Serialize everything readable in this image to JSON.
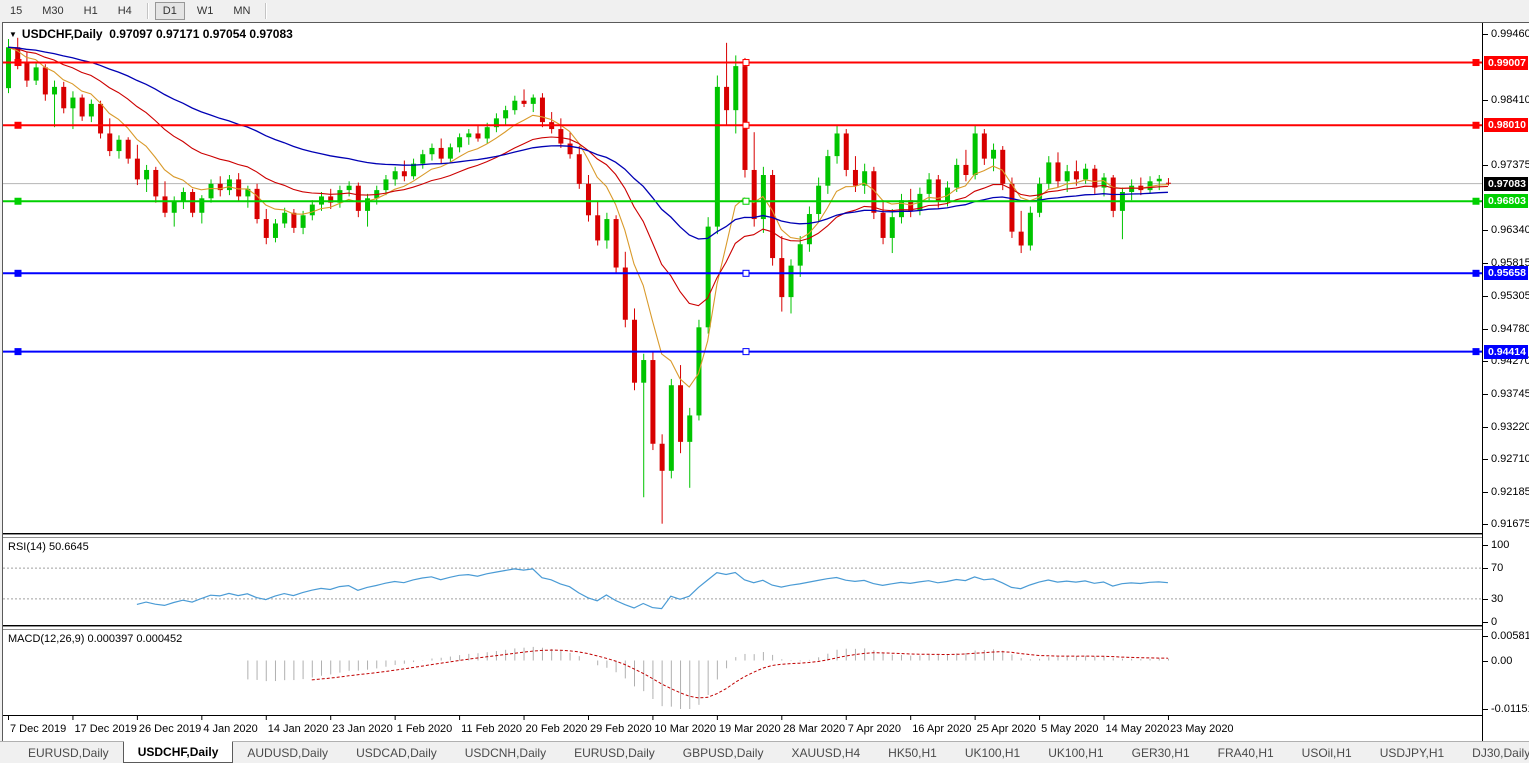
{
  "toolbar": {
    "timeframes": [
      "15",
      "M30",
      "H1",
      "H4",
      "D1",
      "W1",
      "MN"
    ],
    "active": "D1"
  },
  "chart": {
    "title_symbol": "USDCHF,Daily",
    "ohlc_display": "0.97097 0.97171 0.97054 0.97083"
  },
  "chart_data": {
    "type": "candlestick",
    "symbol": "USDCHF",
    "timeframe": "Daily",
    "last_bar": {
      "open": "0.97097",
      "high": "0.97171",
      "low": "0.97054",
      "close": "0.97083"
    },
    "colors": {
      "bull": "#00c400",
      "bear": "#d80000",
      "ma_fast": "#d99a2b",
      "ma_mid": "#cc0000",
      "ma_slow": "#0000b4",
      "rsi_line": "#4a9bd5",
      "macd_hist": "#b0b0b0",
      "macd_signal": "#c00000",
      "bid_line": "#b4b4b4"
    },
    "x_labels": [
      "7 Dec 2019",
      "17 Dec 2019",
      "26 Dec 2019",
      "4 Jan 2020",
      "14 Jan 2020",
      "23 Jan 2020",
      "1 Feb 2020",
      "11 Feb 2020",
      "20 Feb 2020",
      "29 Feb 2020",
      "10 Mar 2020",
      "19 Mar 2020",
      "28 Mar 2020",
      "7 Apr 2020",
      "16 Apr 2020",
      "25 Apr 2020",
      "5 May 2020",
      "14 May 2020",
      "23 May 2020"
    ],
    "bars_per_label": 7,
    "price_ticks": [
      "0.99460",
      "0.98410",
      "0.97375",
      "0.96340",
      "0.95815",
      "0.95305",
      "0.94780",
      "0.94270",
      "0.93745",
      "0.93220",
      "0.92710",
      "0.92185",
      "0.91675"
    ],
    "hlines": [
      {
        "price": 0.99007,
        "label": "0.99007",
        "color": "#ff0000",
        "width": 2
      },
      {
        "price": 0.9801,
        "label": "0.98010",
        "color": "#ff0000",
        "width": 2
      },
      {
        "price": 0.96803,
        "label": "0.96803",
        "color": "#00d000",
        "width": 2
      },
      {
        "price": 0.95658,
        "label": "0.95658",
        "color": "#0000ff",
        "width": 2
      },
      {
        "price": 0.94414,
        "label": "0.94414",
        "color": "#0000ff",
        "width": 2
      }
    ],
    "bid": {
      "price": 0.97083,
      "label": "0.97083",
      "badge_color": "#000000"
    },
    "moving_averages": [
      {
        "name": "fast",
        "period": 8
      },
      {
        "name": "mid",
        "period": 20
      },
      {
        "name": "slow",
        "period": 45
      }
    ],
    "ohlc": [
      [
        0.986,
        0.9938,
        0.9852,
        0.9925
      ],
      [
        0.9925,
        0.994,
        0.989,
        0.99
      ],
      [
        0.99,
        0.9918,
        0.9862,
        0.9872
      ],
      [
        0.9872,
        0.99,
        0.9865,
        0.9893
      ],
      [
        0.9893,
        0.9898,
        0.984,
        0.985
      ],
      [
        0.985,
        0.9872,
        0.9798,
        0.9862
      ],
      [
        0.9862,
        0.987,
        0.982,
        0.9828
      ],
      [
        0.9828,
        0.9855,
        0.9795,
        0.9845
      ],
      [
        0.9845,
        0.985,
        0.9808,
        0.9815
      ],
      [
        0.9815,
        0.9842,
        0.9806,
        0.9835
      ],
      [
        0.9835,
        0.984,
        0.978,
        0.9788
      ],
      [
        0.9788,
        0.9812,
        0.9752,
        0.976
      ],
      [
        0.976,
        0.9785,
        0.9748,
        0.9778
      ],
      [
        0.9778,
        0.9782,
        0.974,
        0.9748
      ],
      [
        0.9748,
        0.977,
        0.9706,
        0.9715
      ],
      [
        0.9715,
        0.9738,
        0.9695,
        0.973
      ],
      [
        0.973,
        0.9735,
        0.9678,
        0.9688
      ],
      [
        0.9688,
        0.9712,
        0.9655,
        0.9662
      ],
      [
        0.9662,
        0.9688,
        0.964,
        0.968
      ],
      [
        0.968,
        0.9702,
        0.9668,
        0.9695
      ],
      [
        0.9695,
        0.97,
        0.9655,
        0.9662
      ],
      [
        0.9662,
        0.969,
        0.9645,
        0.9685
      ],
      [
        0.9685,
        0.9715,
        0.9678,
        0.9708
      ],
      [
        0.9708,
        0.972,
        0.9688,
        0.9698
      ],
      [
        0.9698,
        0.9722,
        0.969,
        0.9715
      ],
      [
        0.9715,
        0.9725,
        0.968,
        0.9688
      ],
      [
        0.9688,
        0.9705,
        0.967,
        0.97
      ],
      [
        0.97,
        0.9708,
        0.9645,
        0.9652
      ],
      [
        0.9652,
        0.9668,
        0.9612,
        0.9622
      ],
      [
        0.9622,
        0.9652,
        0.9615,
        0.9645
      ],
      [
        0.9645,
        0.967,
        0.9638,
        0.9662
      ],
      [
        0.9662,
        0.9668,
        0.963,
        0.9638
      ],
      [
        0.9638,
        0.9665,
        0.9628,
        0.9658
      ],
      [
        0.9658,
        0.9682,
        0.965,
        0.9675
      ],
      [
        0.9675,
        0.9695,
        0.9665,
        0.9688
      ],
      [
        0.9688,
        0.97,
        0.9668,
        0.9678
      ],
      [
        0.9678,
        0.9705,
        0.967,
        0.9698
      ],
      [
        0.9698,
        0.9712,
        0.9688,
        0.9705
      ],
      [
        0.9705,
        0.971,
        0.9655,
        0.9665
      ],
      [
        0.9665,
        0.9692,
        0.964,
        0.9685
      ],
      [
        0.9685,
        0.9705,
        0.9675,
        0.9698
      ],
      [
        0.9698,
        0.9722,
        0.969,
        0.9715
      ],
      [
        0.9715,
        0.9735,
        0.9705,
        0.9728
      ],
      [
        0.9728,
        0.9745,
        0.9712,
        0.972
      ],
      [
        0.972,
        0.9748,
        0.9715,
        0.974
      ],
      [
        0.974,
        0.9762,
        0.9732,
        0.9755
      ],
      [
        0.9755,
        0.9772,
        0.9745,
        0.9765
      ],
      [
        0.9765,
        0.978,
        0.974,
        0.9748
      ],
      [
        0.9748,
        0.9772,
        0.9742,
        0.9766
      ],
      [
        0.9766,
        0.9788,
        0.9758,
        0.9782
      ],
      [
        0.9782,
        0.9795,
        0.977,
        0.9788
      ],
      [
        0.9788,
        0.98,
        0.9775,
        0.978
      ],
      [
        0.978,
        0.9805,
        0.9772,
        0.9798
      ],
      [
        0.9798,
        0.982,
        0.979,
        0.9812
      ],
      [
        0.9812,
        0.9832,
        0.98,
        0.9825
      ],
      [
        0.9825,
        0.9848,
        0.9818,
        0.984
      ],
      [
        0.984,
        0.9858,
        0.983,
        0.9835
      ],
      [
        0.9835,
        0.985,
        0.9822,
        0.9845
      ],
      [
        0.9845,
        0.9852,
        0.9798,
        0.9806
      ],
      [
        0.9806,
        0.9822,
        0.9788,
        0.9795
      ],
      [
        0.9795,
        0.9812,
        0.9765,
        0.9772
      ],
      [
        0.9772,
        0.979,
        0.9748,
        0.9755
      ],
      [
        0.9755,
        0.9768,
        0.97,
        0.9708
      ],
      [
        0.9708,
        0.9722,
        0.9648,
        0.9658
      ],
      [
        0.9658,
        0.968,
        0.961,
        0.9618
      ],
      [
        0.9618,
        0.9662,
        0.9605,
        0.9652
      ],
      [
        0.9652,
        0.9658,
        0.9565,
        0.9575
      ],
      [
        0.9575,
        0.96,
        0.948,
        0.9492
      ],
      [
        0.9492,
        0.951,
        0.938,
        0.9392
      ],
      [
        0.9392,
        0.9438,
        0.921,
        0.9428
      ],
      [
        0.9428,
        0.944,
        0.9285,
        0.9295
      ],
      [
        0.9295,
        0.931,
        0.9168,
        0.9252
      ],
      [
        0.9252,
        0.9398,
        0.924,
        0.9388
      ],
      [
        0.9388,
        0.942,
        0.928,
        0.9298
      ],
      [
        0.9298,
        0.9352,
        0.9225,
        0.934
      ],
      [
        0.934,
        0.9492,
        0.9332,
        0.948
      ],
      [
        0.948,
        0.9655,
        0.947,
        0.964
      ],
      [
        0.964,
        0.988,
        0.9628,
        0.9862
      ],
      [
        0.9862,
        0.9932,
        0.98,
        0.9825
      ],
      [
        0.9825,
        0.9912,
        0.9788,
        0.9895
      ],
      [
        0.9895,
        0.9908,
        0.9718,
        0.973
      ],
      [
        0.973,
        0.979,
        0.964,
        0.9652
      ],
      [
        0.9652,
        0.9735,
        0.963,
        0.9722
      ],
      [
        0.9722,
        0.973,
        0.9578,
        0.959
      ],
      [
        0.959,
        0.9625,
        0.9505,
        0.9528
      ],
      [
        0.9528,
        0.9588,
        0.9502,
        0.9578
      ],
      [
        0.9578,
        0.9625,
        0.956,
        0.9612
      ],
      [
        0.9612,
        0.9672,
        0.96,
        0.966
      ],
      [
        0.966,
        0.9718,
        0.9648,
        0.9705
      ],
      [
        0.9705,
        0.9762,
        0.9692,
        0.9752
      ],
      [
        0.9752,
        0.98,
        0.974,
        0.9788
      ],
      [
        0.9788,
        0.9795,
        0.972,
        0.973
      ],
      [
        0.973,
        0.9752,
        0.9695,
        0.9705
      ],
      [
        0.9705,
        0.974,
        0.9692,
        0.9728
      ],
      [
        0.9728,
        0.9735,
        0.9652,
        0.9662
      ],
      [
        0.9662,
        0.968,
        0.9612,
        0.9622
      ],
      [
        0.9622,
        0.9668,
        0.9598,
        0.9655
      ],
      [
        0.9655,
        0.9692,
        0.9645,
        0.9682
      ],
      [
        0.9682,
        0.97,
        0.9655,
        0.9665
      ],
      [
        0.9665,
        0.9702,
        0.9658,
        0.9692
      ],
      [
        0.9692,
        0.9725,
        0.9682,
        0.9715
      ],
      [
        0.9715,
        0.9722,
        0.967,
        0.968
      ],
      [
        0.968,
        0.9712,
        0.9672,
        0.9702
      ],
      [
        0.9702,
        0.9748,
        0.9695,
        0.9738
      ],
      [
        0.9738,
        0.9762,
        0.9712,
        0.9722
      ],
      [
        0.9722,
        0.98,
        0.9715,
        0.9788
      ],
      [
        0.9788,
        0.9795,
        0.9738,
        0.9748
      ],
      [
        0.9748,
        0.9772,
        0.9728,
        0.9762
      ],
      [
        0.9762,
        0.9768,
        0.9698,
        0.9708
      ],
      [
        0.9708,
        0.9718,
        0.9622,
        0.9632
      ],
      [
        0.9632,
        0.9665,
        0.9598,
        0.961
      ],
      [
        0.961,
        0.9672,
        0.9602,
        0.9662
      ],
      [
        0.9662,
        0.9718,
        0.9655,
        0.9708
      ],
      [
        0.9708,
        0.9752,
        0.97,
        0.9742
      ],
      [
        0.9742,
        0.9758,
        0.9702,
        0.9712
      ],
      [
        0.9712,
        0.9738,
        0.9695,
        0.9728
      ],
      [
        0.9728,
        0.9745,
        0.9705,
        0.9715
      ],
      [
        0.9715,
        0.974,
        0.9708,
        0.9732
      ],
      [
        0.9732,
        0.9738,
        0.9692,
        0.9702
      ],
      [
        0.9702,
        0.9725,
        0.9688,
        0.9718
      ],
      [
        0.9718,
        0.9722,
        0.9655,
        0.9665
      ],
      [
        0.9665,
        0.9702,
        0.962,
        0.9695
      ],
      [
        0.9695,
        0.9715,
        0.9682,
        0.9705
      ],
      [
        0.9705,
        0.9718,
        0.969,
        0.9698
      ],
      [
        0.9698,
        0.972,
        0.9692,
        0.9712
      ],
      [
        0.9712,
        0.9722,
        0.9698,
        0.9716
      ],
      [
        0.97097,
        0.97171,
        0.97054,
        0.97083
      ]
    ],
    "rsi": {
      "period": 14,
      "last": "50.6645",
      "levels": [
        70,
        30
      ],
      "scale": [
        100,
        0
      ]
    },
    "macd": {
      "fast": 12,
      "slow": 26,
      "signal_period": 9,
      "last_main": "0.000397",
      "last_signal": "0.000452",
      "axis_max": 0.005818,
      "axis_min": -0.011514
    }
  },
  "rsi_panel": {
    "label": "RSI(14) 50.6645",
    "ticks": [
      {
        "v": 100,
        "t": "100"
      },
      {
        "v": 70,
        "t": "70"
      },
      {
        "v": 30,
        "t": "30"
      },
      {
        "v": 0,
        "t": "0"
      }
    ]
  },
  "macd_panel": {
    "label": "MACD(12,26,9) 0.000397 0.000452",
    "ticks": [
      "0.005818",
      "0.00",
      "-0.011514"
    ]
  },
  "tabs": {
    "items": [
      "EURUSD,Daily",
      "USDCHF,Daily",
      "AUDUSD,Daily",
      "USDCAD,Daily",
      "USDCNH,Daily",
      "EURUSD,Daily",
      "GBPUSD,Daily",
      "XAUUSD,H4",
      "HK50,H1",
      "UK100,H1",
      "UK100,H1",
      "GER30,H1",
      "FRA40,H1",
      "USOil,H1",
      "USDJPY,H1",
      "DJ30,Daily"
    ],
    "active_index": 1,
    "left_arrow": "◄",
    "right_arrow": "►"
  }
}
